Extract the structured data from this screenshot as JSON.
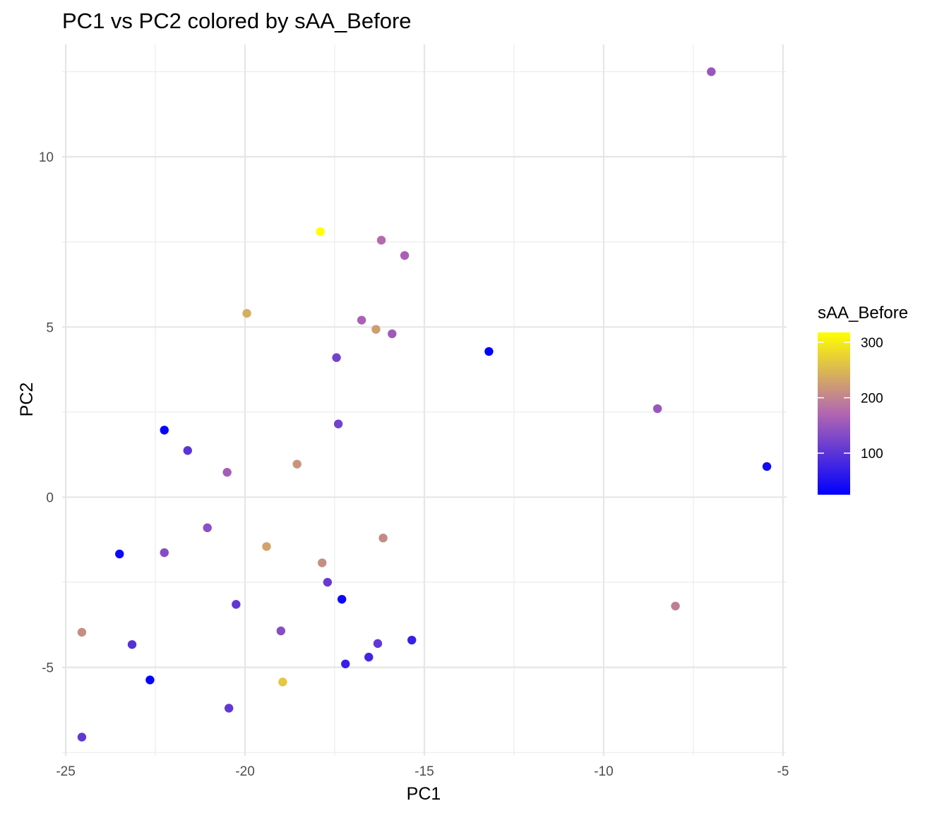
{
  "chart_data": {
    "type": "scatter",
    "title": "PC1 vs PC2 colored by sAA_Before",
    "xlabel": "PC1",
    "ylabel": "PC2",
    "xlim": [
      -25.1,
      -4.9
    ],
    "ylim": [
      -7.6,
      13.3
    ],
    "x_ticks": [
      -25,
      -20,
      -15,
      -10,
      -5
    ],
    "y_ticks": [
      -5,
      0,
      5,
      10
    ],
    "x_tick_labels": [
      "-25",
      "-20",
      "-15",
      "-10",
      "-5"
    ],
    "y_tick_labels": [
      "-5",
      "0",
      "5",
      "10"
    ],
    "grid": true,
    "legend": {
      "title": "sAA_Before",
      "position": "right",
      "range": [
        25,
        318
      ],
      "breaks": [
        100,
        200,
        300
      ],
      "break_labels": [
        "100",
        "200",
        "300"
      ],
      "colors": [
        "#0000ff",
        "#b266b2",
        "#ffff00"
      ]
    },
    "points": [
      {
        "x": -7.0,
        "y": 12.5,
        "c": 150
      },
      {
        "x": -17.9,
        "y": 7.8,
        "c": 318
      },
      {
        "x": -16.2,
        "y": 7.55,
        "c": 175
      },
      {
        "x": -15.55,
        "y": 7.1,
        "c": 165
      },
      {
        "x": -19.95,
        "y": 5.4,
        "c": 240
      },
      {
        "x": -16.75,
        "y": 5.2,
        "c": 165
      },
      {
        "x": -16.35,
        "y": 4.93,
        "c": 225
      },
      {
        "x": -15.9,
        "y": 4.8,
        "c": 155
      },
      {
        "x": -17.45,
        "y": 4.1,
        "c": 120
      },
      {
        "x": -13.2,
        "y": 4.28,
        "c": 25
      },
      {
        "x": -8.5,
        "y": 2.6,
        "c": 150
      },
      {
        "x": -22.25,
        "y": 1.97,
        "c": 30
      },
      {
        "x": -17.4,
        "y": 2.15,
        "c": 120
      },
      {
        "x": -21.6,
        "y": 1.37,
        "c": 100
      },
      {
        "x": -20.5,
        "y": 0.73,
        "c": 160
      },
      {
        "x": -18.55,
        "y": 0.97,
        "c": 215
      },
      {
        "x": -5.45,
        "y": 0.9,
        "c": 40
      },
      {
        "x": -21.05,
        "y": -0.9,
        "c": 140
      },
      {
        "x": -19.4,
        "y": -1.45,
        "c": 230
      },
      {
        "x": -16.15,
        "y": -1.2,
        "c": 205
      },
      {
        "x": -23.5,
        "y": -1.67,
        "c": 35
      },
      {
        "x": -22.25,
        "y": -1.63,
        "c": 135
      },
      {
        "x": -17.85,
        "y": -1.93,
        "c": 210
      },
      {
        "x": -17.7,
        "y": -2.5,
        "c": 110
      },
      {
        "x": -17.3,
        "y": -3.0,
        "c": 35
      },
      {
        "x": -20.25,
        "y": -3.15,
        "c": 105
      },
      {
        "x": -8.0,
        "y": -3.2,
        "c": 195
      },
      {
        "x": -19.0,
        "y": -3.93,
        "c": 135
      },
      {
        "x": -24.55,
        "y": -3.97,
        "c": 210
      },
      {
        "x": -15.35,
        "y": -4.2,
        "c": 70
      },
      {
        "x": -23.15,
        "y": -4.33,
        "c": 95
      },
      {
        "x": -16.3,
        "y": -4.3,
        "c": 105
      },
      {
        "x": -16.55,
        "y": -4.7,
        "c": 80
      },
      {
        "x": -17.2,
        "y": -4.9,
        "c": 70
      },
      {
        "x": -22.65,
        "y": -5.37,
        "c": 30
      },
      {
        "x": -18.95,
        "y": -5.43,
        "c": 265
      },
      {
        "x": -20.45,
        "y": -6.2,
        "c": 105
      },
      {
        "x": -24.55,
        "y": -7.05,
        "c": 105
      }
    ]
  }
}
